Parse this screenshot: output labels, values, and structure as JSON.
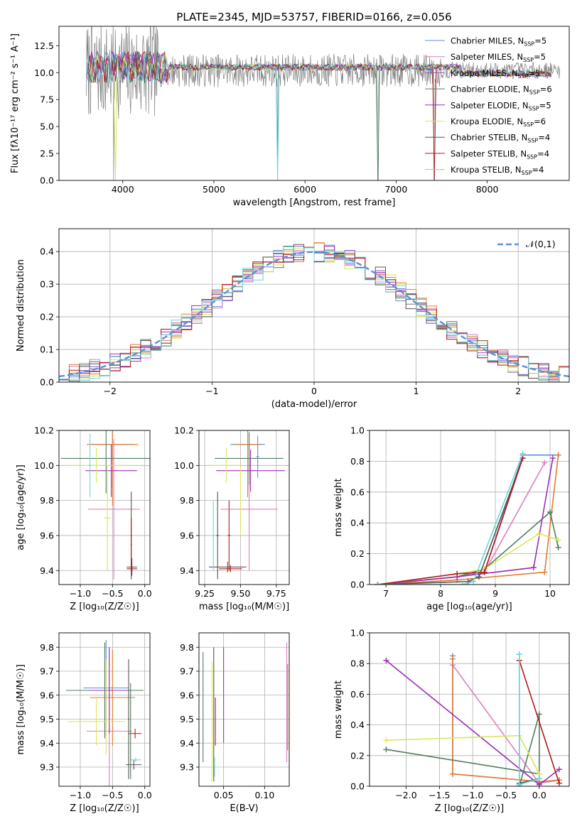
{
  "colors": {
    "axes": "#000000",
    "grid": "#b0b0b0",
    "series": [
      "#5b8fd8",
      "#e07fbd",
      "#8b5cc4",
      "#e57a2e",
      "#4f7f5e",
      "#9b30b8",
      "#d9e65a",
      "#555555",
      "#b31b1b",
      "#6fd6d6"
    ]
  },
  "chart_data": [
    {
      "id": "spectrum",
      "type": "line",
      "title": "PLATE=2345, MJD=53757, FIBERID=0166, z=0.056",
      "xlabel": "wavelength [Angstrom, rest frame]",
      "ylabel": "Flux [fλ10⁻¹⁷ erg cm⁻² s⁻¹ A⁻¹]",
      "xlim": [
        3300,
        8900
      ],
      "ylim": [
        0,
        14.3
      ],
      "xticks": [
        4000,
        5000,
        6000,
        7000,
        8000
      ],
      "yticks": [
        0.0,
        2.5,
        5.0,
        7.5,
        10.0,
        12.5
      ],
      "ytick_labels": [
        "0.0",
        "2.5",
        "5.0",
        "7.5",
        "10.0",
        "12.5"
      ],
      "grid": false,
      "legend_position": "upper-right",
      "legend": [
        {
          "label": "Chabrier MILES, N_SSP=5",
          "color": "#5b8fd8"
        },
        {
          "label": "Salpeter MILES, N_SSP=5",
          "color": "#e07fbd"
        },
        {
          "label": "Kroupa MILES, N_SSP=5",
          "color": "#8b5cc4"
        },
        {
          "label": "Chabrier ELODIE, N_SSP=6",
          "color": "#4f7f5e"
        },
        {
          "label": "Salpeter ELODIE, N_SSP=5",
          "color": "#9b30b8"
        },
        {
          "label": "Kroupa ELODIE, N_SSP=6",
          "color": "#d9e65a"
        },
        {
          "label": "Chabrier STELIB, N_SSP=4",
          "color": "#555555"
        },
        {
          "label": "Salpeter STELIB, N_SSP=4",
          "color": "#b31b1b"
        },
        {
          "label": "Kroupa STELIB, N_SSP=4",
          "color": "#6fd6d6"
        }
      ],
      "data_series": {
        "name": "data",
        "color": "#808080",
        "x_range": [
          3600,
          8800
        ],
        "level": 10.2,
        "noise": 1.3
      },
      "model_level": 10.5,
      "absorption_lines": [
        3900,
        5700,
        6800,
        7420
      ]
    },
    {
      "id": "residuals",
      "type": "histogram",
      "xlabel": "(data-model)/error",
      "ylabel": "Normed distribution",
      "xlim": [
        -2.5,
        2.5
      ],
      "ylim": [
        0,
        0.47
      ],
      "xticks": [
        -2,
        -1,
        0,
        1,
        2
      ],
      "xtick_labels": [
        "−2",
        "−1",
        "0",
        "1",
        "2"
      ],
      "yticks": [
        0.0,
        0.1,
        0.2,
        0.3,
        0.4
      ],
      "ytick_labels": [
        "0.0",
        "0.1",
        "0.2",
        "0.3",
        "0.4"
      ],
      "grid": true,
      "bin_width": 0.1,
      "legend": [
        {
          "label": "𝒩(0,1)",
          "color": "#5b8fd8",
          "style": "dashed"
        }
      ]
    },
    {
      "id": "age-vs-Z",
      "type": "errorbar",
      "xlabel": "Z [log₁₀(Z/Z☉)]",
      "ylabel": "age  [log₁₀(age/yr)]",
      "xlim": [
        -1.33,
        0.08
      ],
      "ylim": [
        9.32,
        10.2
      ],
      "xticks": [
        -1.0,
        -0.5,
        0.0
      ],
      "xtick_labels": [
        "−1.0",
        "−0.5",
        "0.0"
      ],
      "yticks": [
        9.4,
        9.6,
        9.8,
        10.0,
        10.2
      ],
      "ytick_labels": [
        "9.4",
        "9.6",
        "9.8",
        "10.0",
        "10.2"
      ],
      "grid": true,
      "points": [
        {
          "x": -0.5,
          "y": 10.12,
          "xerr": 0.35,
          "yerr": 0.25,
          "color": "#5b8fd8"
        },
        {
          "x": -0.48,
          "y": 9.75,
          "xerr": 0.4,
          "yerr": 0.4,
          "color": "#e07fbd"
        },
        {
          "x": -0.5,
          "y": 10.12,
          "xerr": 0.4,
          "yerr": 0.35,
          "color": "#e57a2e"
        },
        {
          "x": -0.6,
          "y": 10.04,
          "xerr": 0.7,
          "yerr": 0.2,
          "color": "#4f7f5e"
        },
        {
          "x": -0.52,
          "y": 9.97,
          "xerr": 0.4,
          "yerr": 0.15,
          "color": "#9b30b8"
        },
        {
          "x": -0.75,
          "y": 10.0,
          "xerr": 0.45,
          "yerr": 0.1,
          "color": "#d9e65a"
        },
        {
          "x": -0.58,
          "y": 9.7,
          "xerr": 0.05,
          "yerr": 0.3,
          "color": "#d9e65a"
        },
        {
          "x": -0.85,
          "y": 10.0,
          "xerr": 0.02,
          "yerr": 0.18,
          "color": "#6fd6d6"
        },
        {
          "x": -0.2,
          "y": 9.42,
          "xerr": 0.08,
          "yerr": 0.05,
          "color": "#555555"
        },
        {
          "x": -0.2,
          "y": 9.41,
          "xerr": 0.08,
          "yerr": 0.02,
          "color": "#b31b1b"
        },
        {
          "x": -0.21,
          "y": 9.6,
          "xerr": 0.01,
          "yerr": 0.25,
          "color": "#555555"
        },
        {
          "x": -0.21,
          "y": 9.55,
          "xerr": 0.01,
          "yerr": 0.15,
          "color": "#b31b1b"
        }
      ]
    },
    {
      "id": "age-vs-mass",
      "type": "errorbar",
      "xlabel": "mass [log₁₀(M/M☉)]",
      "ylabel": "",
      "xlim": [
        9.21,
        9.84
      ],
      "ylim": [
        9.32,
        10.2
      ],
      "xticks": [
        9.25,
        9.5,
        9.75
      ],
      "xtick_labels": [
        "9.25",
        "9.50",
        "9.75"
      ],
      "yticks": [
        9.4,
        9.6,
        9.8,
        10.0,
        10.2
      ],
      "ytick_labels": [
        "9.4",
        "9.6",
        "9.8",
        "10.0",
        "10.2"
      ],
      "grid": true,
      "points": [
        {
          "x": 9.55,
          "y": 10.12,
          "xerr": 0.12,
          "yerr": 0.25,
          "color": "#5b8fd8"
        },
        {
          "x": 9.56,
          "y": 9.75,
          "xerr": 0.2,
          "yerr": 0.35,
          "color": "#e07fbd"
        },
        {
          "x": 9.55,
          "y": 10.12,
          "xerr": 0.1,
          "yerr": 0.3,
          "color": "#e57a2e"
        },
        {
          "x": 9.56,
          "y": 10.04,
          "xerr": 0.24,
          "yerr": 0.15,
          "color": "#4f7f5e"
        },
        {
          "x": 9.57,
          "y": 9.97,
          "xerr": 0.24,
          "yerr": 0.12,
          "color": "#9b30b8"
        },
        {
          "x": 9.4,
          "y": 10.0,
          "xerr": 0.1,
          "yerr": 0.1,
          "color": "#d9e65a"
        },
        {
          "x": 9.5,
          "y": 9.8,
          "xerr": 0.01,
          "yerr": 0.2,
          "color": "#d9e65a"
        },
        {
          "x": 9.41,
          "y": 9.42,
          "xerr": 0.13,
          "yerr": 0.03,
          "color": "#555555"
        },
        {
          "x": 9.43,
          "y": 9.41,
          "xerr": 0.08,
          "yerr": 0.02,
          "color": "#b31b1b"
        },
        {
          "x": 9.34,
          "y": 9.6,
          "xerr": 0.01,
          "yerr": 0.25,
          "color": "#555555"
        },
        {
          "x": 9.31,
          "y": 9.6,
          "xerr": 0.01,
          "yerr": 0.2,
          "color": "#6fd6d6"
        },
        {
          "x": 9.42,
          "y": 9.6,
          "xerr": 0.01,
          "yerr": 0.2,
          "color": "#b31b1b"
        },
        {
          "x": 9.62,
          "y": 10.05,
          "xerr": 0.01,
          "yerr": 0.12,
          "color": "#5b8fd8"
        }
      ]
    },
    {
      "id": "weight-vs-age",
      "type": "line",
      "xlabel": "age  [log₁₀(age/yr)]",
      "ylabel": "mass weight",
      "xlim": [
        6.7,
        10.35
      ],
      "ylim": [
        0,
        1.0
      ],
      "xticks": [
        7,
        8,
        9,
        10
      ],
      "xtick_labels": [
        "7",
        "8",
        "9",
        "10"
      ],
      "yticks": [
        0.0,
        0.2,
        0.4,
        0.6,
        0.8,
        1.0
      ],
      "ytick_labels": [
        "0.0",
        "0.2",
        "0.4",
        "0.6",
        "0.8",
        "1.0"
      ],
      "grid": true,
      "series": [
        {
          "color": "#5b8fd8",
          "x": [
            6.85,
            8.3,
            8.8,
            9.5,
            10.15
          ],
          "y": [
            0.0,
            0.05,
            0.08,
            0.84,
            0.84
          ]
        },
        {
          "color": "#e07fbd",
          "x": [
            6.85,
            8.3,
            8.8,
            9.9
          ],
          "y": [
            0.0,
            0.05,
            0.08,
            0.79
          ]
        },
        {
          "color": "#e57a2e",
          "x": [
            6.85,
            8.3,
            9.9,
            10.15
          ],
          "y": [
            0.0,
            0.03,
            0.08,
            0.84
          ]
        },
        {
          "color": "#4f7f5e",
          "x": [
            6.85,
            8.3,
            8.8,
            10.0,
            10.15
          ],
          "y": [
            0.0,
            0.05,
            0.1,
            0.47,
            0.24
          ]
        },
        {
          "color": "#9b30b8",
          "x": [
            6.85,
            8.3,
            9.7,
            10.05
          ],
          "y": [
            0.0,
            0.05,
            0.11,
            0.82
          ]
        },
        {
          "color": "#d9e65a",
          "x": [
            6.85,
            8.3,
            8.8,
            9.8,
            10.15
          ],
          "y": [
            0.0,
            0.07,
            0.1,
            0.33,
            0.29
          ]
        },
        {
          "color": "#555555",
          "x": [
            6.85,
            8.5,
            8.7,
            9.5
          ],
          "y": [
            0.0,
            0.02,
            0.05,
            0.82
          ]
        },
        {
          "color": "#b31b1b",
          "x": [
            6.85,
            8.3,
            8.8,
            9.5
          ],
          "y": [
            0.0,
            0.07,
            0.08,
            0.82
          ]
        },
        {
          "color": "#6fd6d6",
          "x": [
            6.85,
            8.4,
            8.6,
            9.5
          ],
          "y": [
            0.0,
            0.0,
            0.02,
            0.85
          ]
        }
      ]
    },
    {
      "id": "mass-vs-Z",
      "type": "errorbar",
      "xlabel": "Z [log₁₀(Z/Z☉)]",
      "ylabel": "mass [log₁₀(M/M☉)]",
      "xlim": [
        -1.33,
        0.08
      ],
      "ylim": [
        9.22,
        9.86
      ],
      "xticks": [
        -1.0,
        -0.5,
        0.0
      ],
      "xtick_labels": [
        "−1.0",
        "−0.5",
        "0.0"
      ],
      "yticks": [
        9.3,
        9.4,
        9.5,
        9.6,
        9.7,
        9.8
      ],
      "ytick_labels": [
        "9.3",
        "9.4",
        "9.5",
        "9.6",
        "9.7",
        "9.8"
      ],
      "grid": true,
      "points": [
        {
          "x": -0.6,
          "y": 9.63,
          "xerr": 0.35,
          "yerr": 0.2,
          "color": "#5b8fd8"
        },
        {
          "x": -0.55,
          "y": 9.45,
          "xerr": 0.35,
          "yerr": 0.35,
          "color": "#e07fbd"
        },
        {
          "x": -0.5,
          "y": 9.59,
          "xerr": 0.35,
          "yerr": 0.2,
          "color": "#e57a2e"
        },
        {
          "x": -0.62,
          "y": 9.62,
          "xerr": 0.6,
          "yerr": 0.2,
          "color": "#4f7f5e"
        },
        {
          "x": -0.55,
          "y": 9.62,
          "xerr": 0.3,
          "yerr": 0.18,
          "color": "#9b30b8"
        },
        {
          "x": -0.75,
          "y": 9.49,
          "xerr": 0.45,
          "yerr": 0.1,
          "color": "#d9e65a"
        },
        {
          "x": -0.6,
          "y": 9.55,
          "xerr": 0.01,
          "yerr": 0.2,
          "color": "#d9e65a"
        },
        {
          "x": -0.17,
          "y": 9.31,
          "xerr": 0.12,
          "yerr": 0.02,
          "color": "#555555"
        },
        {
          "x": -0.15,
          "y": 9.44,
          "xerr": 0.1,
          "yerr": 0.02,
          "color": "#b31b1b"
        },
        {
          "x": -0.14,
          "y": 9.33,
          "xerr": 0.08,
          "yerr": 0.01,
          "color": "#6fd6d6"
        },
        {
          "x": -0.25,
          "y": 9.5,
          "xerr": 0.01,
          "yerr": 0.25,
          "color": "#555555"
        },
        {
          "x": -0.22,
          "y": 9.45,
          "xerr": 0.01,
          "yerr": 0.2,
          "color": "#4f7f5e"
        }
      ]
    },
    {
      "id": "mass-vs-EBV",
      "type": "errorbar",
      "xlabel": "E(B-V)",
      "ylabel": "",
      "xlim": [
        0.02,
        0.13
      ],
      "ylim": [
        9.22,
        9.86
      ],
      "xticks": [
        0.05,
        0.1
      ],
      "xtick_labels": [
        "0.05",
        "0.10"
      ],
      "yticks": [
        9.3,
        9.4,
        9.5,
        9.6,
        9.7,
        9.8
      ],
      "ytick_labels": [
        "9.3",
        "9.4",
        "9.5",
        "9.6",
        "9.7",
        "9.8"
      ],
      "grid": true,
      "points": [
        {
          "x": 0.025,
          "y": 9.55,
          "xerr": 0,
          "yerr": 0.23,
          "color": "#4f7f5e"
        },
        {
          "x": 0.036,
          "y": 9.49,
          "xerr": 0,
          "yerr": 0.25,
          "color": "#d9e65a"
        },
        {
          "x": 0.038,
          "y": 9.52,
          "xerr": 0,
          "yerr": 0.28,
          "color": "#555555"
        },
        {
          "x": 0.039,
          "y": 9.3,
          "xerr": 0,
          "yerr": 0.04,
          "color": "#6fd6d6"
        },
        {
          "x": 0.04,
          "y": 9.49,
          "xerr": 0,
          "yerr": 0.1,
          "color": "#b31b1b"
        },
        {
          "x": 0.05,
          "y": 9.6,
          "xerr": 0,
          "yerr": 0.2,
          "color": "#9b30b8"
        },
        {
          "x": 0.127,
          "y": 9.57,
          "xerr": 0,
          "yerr": 0.25,
          "color": "#e07fbd"
        },
        {
          "x": 0.128,
          "y": 9.55,
          "xerr": 0,
          "yerr": 0.18,
          "color": "#e57a2e"
        }
      ]
    },
    {
      "id": "weight-vs-Z",
      "type": "line",
      "xlabel": "Z [log₁₀(Z/Z☉)]",
      "ylabel": "mass weight",
      "xlim": [
        -2.55,
        0.45
      ],
      "ylim": [
        0,
        1.0
      ],
      "xticks": [
        -2.0,
        -1.5,
        -1.0,
        -0.5,
        0.0
      ],
      "xtick_labels": [
        "−2.0",
        "−1.5",
        "−1.0",
        "−0.5",
        "0.0"
      ],
      "yticks": [
        0.0,
        0.2,
        0.4,
        0.6,
        0.8,
        1.0
      ],
      "ytick_labels": [
        "0.0",
        "0.2",
        "0.4",
        "0.6",
        "0.8",
        "1.0"
      ],
      "grid": true,
      "series": [
        {
          "color": "#5b8fd8",
          "x": [
            -1.3,
            -1.3,
            0.0,
            0.3
          ],
          "y": [
            0.85,
            0.08,
            0.03,
            0.04
          ]
        },
        {
          "color": "#e07fbd",
          "x": [
            -1.3,
            0.0,
            0.3
          ],
          "y": [
            0.79,
            0.02,
            0.04
          ]
        },
        {
          "color": "#e57a2e",
          "x": [
            -1.3,
            -1.3,
            0.0,
            0.3
          ],
          "y": [
            0.83,
            0.08,
            0.03,
            0.04
          ]
        },
        {
          "color": "#4f7f5e",
          "x": [
            -2.3,
            0.0,
            0.0,
            -0.3
          ],
          "y": [
            0.24,
            0.08,
            0.47,
            0.0
          ]
        },
        {
          "color": "#9b30b8",
          "x": [
            -2.3,
            0.0,
            0.3
          ],
          "y": [
            0.82,
            0.01,
            0.11
          ]
        },
        {
          "color": "#d9e65a",
          "x": [
            -2.3,
            -0.3,
            0.0
          ],
          "y": [
            0.3,
            0.33,
            0.08
          ]
        },
        {
          "color": "#555555",
          "x": [
            -0.3,
            -0.3,
            0.0
          ],
          "y": [
            0.86,
            0.02,
            0.05
          ]
        },
        {
          "color": "#b31b1b",
          "x": [
            -0.3,
            0.3
          ],
          "y": [
            0.82,
            0.02
          ]
        },
        {
          "color": "#6fd6d6",
          "x": [
            -0.3,
            -0.3,
            0.0
          ],
          "y": [
            0.86,
            0.01,
            0.05
          ]
        }
      ]
    }
  ]
}
